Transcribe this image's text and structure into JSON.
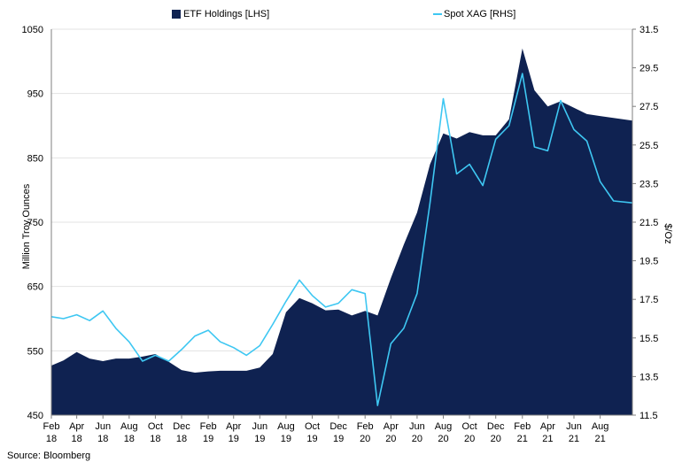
{
  "chart_data": {
    "type": "area",
    "title": "",
    "source": "Source: Bloomberg",
    "legend_position": "top",
    "grid": true,
    "y_left": {
      "label": "Million Troy  Ounces",
      "range": [
        450,
        1050
      ],
      "ticks": [
        "450",
        "550",
        "650",
        "750",
        "850",
        "950",
        "1050"
      ]
    },
    "y_right": {
      "label": "$/Oz",
      "range": [
        11.5,
        31.5
      ],
      "ticks": [
        "11.5",
        "13.5",
        "15.5",
        "17.5",
        "19.5",
        "21.5",
        "23.5",
        "25.5",
        "27.5",
        "29.5",
        "31.5"
      ]
    },
    "x_range": [
      "2018-02-01",
      "2021-10-15"
    ],
    "x_ticks": [
      {
        "date": "2018-02-01",
        "line1": "Feb",
        "line2": "18"
      },
      {
        "date": "2018-04-01",
        "line1": "Apr",
        "line2": "18"
      },
      {
        "date": "2018-06-01",
        "line1": "Jun",
        "line2": "18"
      },
      {
        "date": "2018-08-01",
        "line1": "Aug",
        "line2": "18"
      },
      {
        "date": "2018-10-01",
        "line1": "Oct",
        "line2": "18"
      },
      {
        "date": "2018-12-01",
        "line1": "Dec",
        "line2": "18"
      },
      {
        "date": "2019-02-01",
        "line1": "Feb",
        "line2": "19"
      },
      {
        "date": "2019-04-01",
        "line1": "Apr",
        "line2": "19"
      },
      {
        "date": "2019-06-01",
        "line1": "Jun",
        "line2": "19"
      },
      {
        "date": "2019-08-01",
        "line1": "Aug",
        "line2": "19"
      },
      {
        "date": "2019-10-01",
        "line1": "Oct",
        "line2": "19"
      },
      {
        "date": "2019-12-01",
        "line1": "Dec",
        "line2": "19"
      },
      {
        "date": "2020-02-01",
        "line1": "Feb",
        "line2": "20"
      },
      {
        "date": "2020-04-01",
        "line1": "Apr",
        "line2": "20"
      },
      {
        "date": "2020-06-01",
        "line1": "Jun",
        "line2": "20"
      },
      {
        "date": "2020-08-01",
        "line1": "Aug",
        "line2": "20"
      },
      {
        "date": "2020-10-01",
        "line1": "Oct",
        "line2": "20"
      },
      {
        "date": "2020-12-01",
        "line1": "Dec",
        "line2": "20"
      },
      {
        "date": "2021-02-01",
        "line1": "Feb",
        "line2": "21"
      },
      {
        "date": "2021-04-01",
        "line1": "Apr",
        "line2": "21"
      },
      {
        "date": "2021-06-01",
        "line1": "Jun",
        "line2": "21"
      },
      {
        "date": "2021-08-01",
        "line1": "Aug",
        "line2": "21"
      }
    ],
    "series": [
      {
        "name": "ETF Holdings [LHS]",
        "type": "area",
        "axis": "left",
        "color": "#0f2251",
        "points": [
          [
            "2018-02-01",
            527
          ],
          [
            "2018-03-01",
            535
          ],
          [
            "2018-04-01",
            548
          ],
          [
            "2018-05-01",
            538
          ],
          [
            "2018-06-01",
            534
          ],
          [
            "2018-07-01",
            538
          ],
          [
            "2018-08-01",
            538
          ],
          [
            "2018-09-01",
            541
          ],
          [
            "2018-10-01",
            545
          ],
          [
            "2018-11-01",
            533
          ],
          [
            "2018-12-01",
            520
          ],
          [
            "2019-01-01",
            516
          ],
          [
            "2019-02-01",
            518
          ],
          [
            "2019-03-01",
            519
          ],
          [
            "2019-04-01",
            519
          ],
          [
            "2019-05-01",
            519
          ],
          [
            "2019-06-01",
            524
          ],
          [
            "2019-07-01",
            545
          ],
          [
            "2019-08-01",
            610
          ],
          [
            "2019-09-01",
            632
          ],
          [
            "2019-10-01",
            624
          ],
          [
            "2019-11-01",
            613
          ],
          [
            "2019-12-01",
            614
          ],
          [
            "2020-01-01",
            605
          ],
          [
            "2020-02-01",
            612
          ],
          [
            "2020-03-01",
            605
          ],
          [
            "2020-04-01",
            663
          ],
          [
            "2020-05-01",
            715
          ],
          [
            "2020-06-01",
            765
          ],
          [
            "2020-07-01",
            840
          ],
          [
            "2020-08-01",
            888
          ],
          [
            "2020-09-01",
            880
          ],
          [
            "2020-10-01",
            890
          ],
          [
            "2020-11-01",
            885
          ],
          [
            "2020-12-01",
            885
          ],
          [
            "2021-01-01",
            910
          ],
          [
            "2021-02-01",
            1020
          ],
          [
            "2021-03-01",
            955
          ],
          [
            "2021-04-01",
            930
          ],
          [
            "2021-05-01",
            938
          ],
          [
            "2021-06-01",
            928
          ],
          [
            "2021-07-01",
            918
          ],
          [
            "2021-08-01",
            915
          ],
          [
            "2021-09-01",
            912
          ],
          [
            "2021-10-15",
            908
          ]
        ]
      },
      {
        "name": "Spot XAG [RHS]",
        "type": "line",
        "axis": "right",
        "color": "#3ec7f2",
        "points": [
          [
            "2018-02-01",
            16.6
          ],
          [
            "2018-03-01",
            16.5
          ],
          [
            "2018-04-01",
            16.7
          ],
          [
            "2018-05-01",
            16.4
          ],
          [
            "2018-06-01",
            16.9
          ],
          [
            "2018-07-01",
            16.0
          ],
          [
            "2018-08-01",
            15.3
          ],
          [
            "2018-09-01",
            14.3
          ],
          [
            "2018-10-01",
            14.6
          ],
          [
            "2018-11-01",
            14.3
          ],
          [
            "2018-12-01",
            14.9
          ],
          [
            "2019-01-01",
            15.6
          ],
          [
            "2019-02-01",
            15.9
          ],
          [
            "2019-03-01",
            15.3
          ],
          [
            "2019-04-01",
            15.0
          ],
          [
            "2019-05-01",
            14.6
          ],
          [
            "2019-06-01",
            15.1
          ],
          [
            "2019-07-01",
            16.2
          ],
          [
            "2019-08-01",
            17.4
          ],
          [
            "2019-09-01",
            18.5
          ],
          [
            "2019-10-01",
            17.7
          ],
          [
            "2019-11-01",
            17.1
          ],
          [
            "2019-12-01",
            17.3
          ],
          [
            "2020-01-01",
            18.0
          ],
          [
            "2020-02-01",
            17.8
          ],
          [
            "2020-03-01",
            12.0
          ],
          [
            "2020-04-01",
            15.2
          ],
          [
            "2020-05-01",
            16.0
          ],
          [
            "2020-06-01",
            17.8
          ],
          [
            "2020-07-01",
            22.5
          ],
          [
            "2020-08-01",
            27.9
          ],
          [
            "2020-09-01",
            24.0
          ],
          [
            "2020-10-01",
            24.5
          ],
          [
            "2020-11-01",
            23.4
          ],
          [
            "2020-12-01",
            25.8
          ],
          [
            "2021-01-01",
            26.5
          ],
          [
            "2021-02-01",
            29.2
          ],
          [
            "2021-03-01",
            25.4
          ],
          [
            "2021-04-01",
            25.2
          ],
          [
            "2021-05-01",
            27.8
          ],
          [
            "2021-06-01",
            26.3
          ],
          [
            "2021-07-01",
            25.7
          ],
          [
            "2021-08-01",
            23.6
          ],
          [
            "2021-09-01",
            22.6
          ],
          [
            "2021-10-15",
            22.5
          ]
        ]
      }
    ]
  }
}
